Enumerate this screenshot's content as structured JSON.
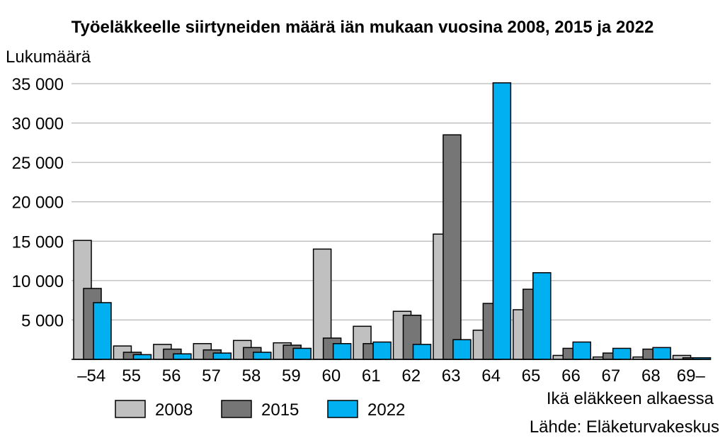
{
  "chart_data": {
    "type": "bar",
    "title": "Työeläkkeelle siirtyneiden määrä iän mukaan vuosina 2008, 2015 ja 2022",
    "ylabel": "Lukumäärä",
    "xlabel": "Ikä eläkkeen alkaessa",
    "source": "Lähde: Eläketurvakeskus",
    "ylim": [
      0,
      35000
    ],
    "yticks": [
      5000,
      10000,
      15000,
      20000,
      25000,
      30000,
      35000
    ],
    "ytick_labels": [
      "5 000",
      "10 000",
      "15 000",
      "20 000",
      "25 000",
      "30 000",
      "35 000"
    ],
    "grid": true,
    "legend_position": "bottom-left",
    "categories": [
      "–54",
      "55",
      "56",
      "57",
      "58",
      "59",
      "60",
      "61",
      "62",
      "63",
      "64",
      "65",
      "66",
      "67",
      "68",
      "69–"
    ],
    "series": [
      {
        "name": "2008",
        "color": "#c0c0c0",
        "values": [
          15100,
          1700,
          1900,
          2000,
          2400,
          2100,
          14000,
          4200,
          6100,
          15900,
          3700,
          6300,
          500,
          300,
          300,
          500
        ]
      },
      {
        "name": "2015",
        "color": "#767676",
        "values": [
          9000,
          900,
          1300,
          1200,
          1500,
          1800,
          2700,
          2000,
          5600,
          28500,
          7100,
          8900,
          1400,
          800,
          1300,
          200
        ]
      },
      {
        "name": "2022",
        "color": "#00b0f0",
        "values": [
          7200,
          600,
          700,
          800,
          900,
          1400,
          2000,
          2200,
          1900,
          2500,
          35100,
          11000,
          2200,
          1400,
          1500,
          200
        ]
      }
    ]
  }
}
